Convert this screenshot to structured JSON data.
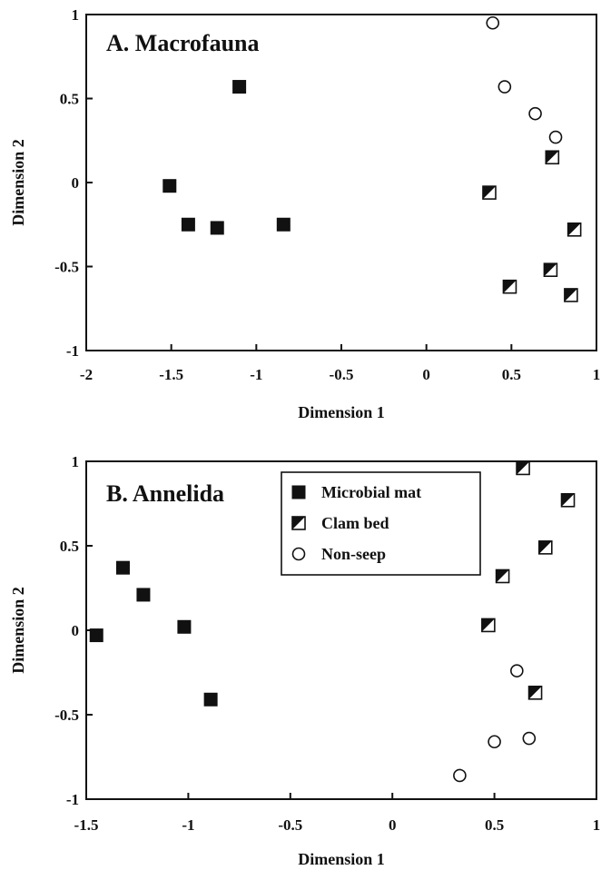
{
  "chart_data": [
    {
      "type": "scatter",
      "title": "A. Macrofauna",
      "xlabel": "Dimension 1",
      "ylabel": "Dimension 2",
      "xlim": [
        -2,
        1
      ],
      "ylim": [
        -1,
        1
      ],
      "xticks": [
        -2,
        -1.5,
        -1,
        -0.5,
        0,
        0.5,
        1
      ],
      "xtick_labels": [
        "-2",
        "-1.5",
        "-1",
        "-0.5",
        "0",
        "0.5",
        "1"
      ],
      "yticks": [
        1,
        0.5,
        0,
        -0.5,
        -1
      ],
      "ytick_labels": [
        "1",
        "0.5",
        "0",
        "-0.5",
        "-1"
      ],
      "series": [
        {
          "marker": "filled-square",
          "points": [
            [
              -1.1,
              0.57
            ],
            [
              -1.51,
              -0.02
            ],
            [
              -1.4,
              -0.25
            ],
            [
              -1.23,
              -0.27
            ],
            [
              -0.84,
              -0.25
            ]
          ]
        },
        {
          "marker": "half-square",
          "points": [
            [
              0.37,
              -0.06
            ],
            [
              0.74,
              0.15
            ],
            [
              0.87,
              -0.28
            ],
            [
              0.73,
              -0.52
            ],
            [
              0.49,
              -0.62
            ],
            [
              0.85,
              -0.67
            ]
          ]
        },
        {
          "marker": "open-circle",
          "points": [
            [
              0.39,
              0.95
            ],
            [
              0.46,
              0.57
            ],
            [
              0.64,
              0.41
            ],
            [
              0.76,
              0.27
            ]
          ]
        }
      ]
    },
    {
      "type": "scatter",
      "title": "B. Annelida",
      "xlabel": "Dimension 1",
      "ylabel": "Dimension 2",
      "xlim": [
        -1.5,
        1
      ],
      "ylim": [
        -1,
        1
      ],
      "xticks": [
        -1.5,
        -1,
        -0.5,
        0,
        0.5,
        1
      ],
      "xtick_labels": [
        "-1.5",
        "-1",
        "-0.5",
        "0",
        "0.5",
        "1"
      ],
      "yticks": [
        1,
        0.5,
        0,
        -0.5,
        -1
      ],
      "ytick_labels": [
        "1",
        "0.5",
        "0",
        "-0.5",
        "-1"
      ],
      "legend": {
        "position": "top-right",
        "entries": [
          {
            "label": "Microbial mat",
            "marker": "filled-square"
          },
          {
            "label": "Clam bed",
            "marker": "half-square"
          },
          {
            "label": "Non-seep",
            "marker": "open-circle"
          }
        ]
      },
      "series": [
        {
          "name": "Microbial mat",
          "marker": "filled-square",
          "points": [
            [
              -1.45,
              -0.03
            ],
            [
              -1.32,
              0.37
            ],
            [
              -1.22,
              0.21
            ],
            [
              -1.02,
              0.02
            ],
            [
              -0.89,
              -0.41
            ]
          ]
        },
        {
          "name": "Clam bed",
          "marker": "half-square",
          "points": [
            [
              0.64,
              0.96
            ],
            [
              0.86,
              0.77
            ],
            [
              0.75,
              0.49
            ],
            [
              0.54,
              0.32
            ],
            [
              0.47,
              0.03
            ],
            [
              0.7,
              -0.37
            ]
          ]
        },
        {
          "name": "Non-seep",
          "marker": "open-circle",
          "points": [
            [
              0.61,
              -0.24
            ],
            [
              0.5,
              -0.66
            ],
            [
              0.67,
              -0.64
            ],
            [
              0.33,
              -0.86
            ]
          ]
        }
      ]
    }
  ]
}
